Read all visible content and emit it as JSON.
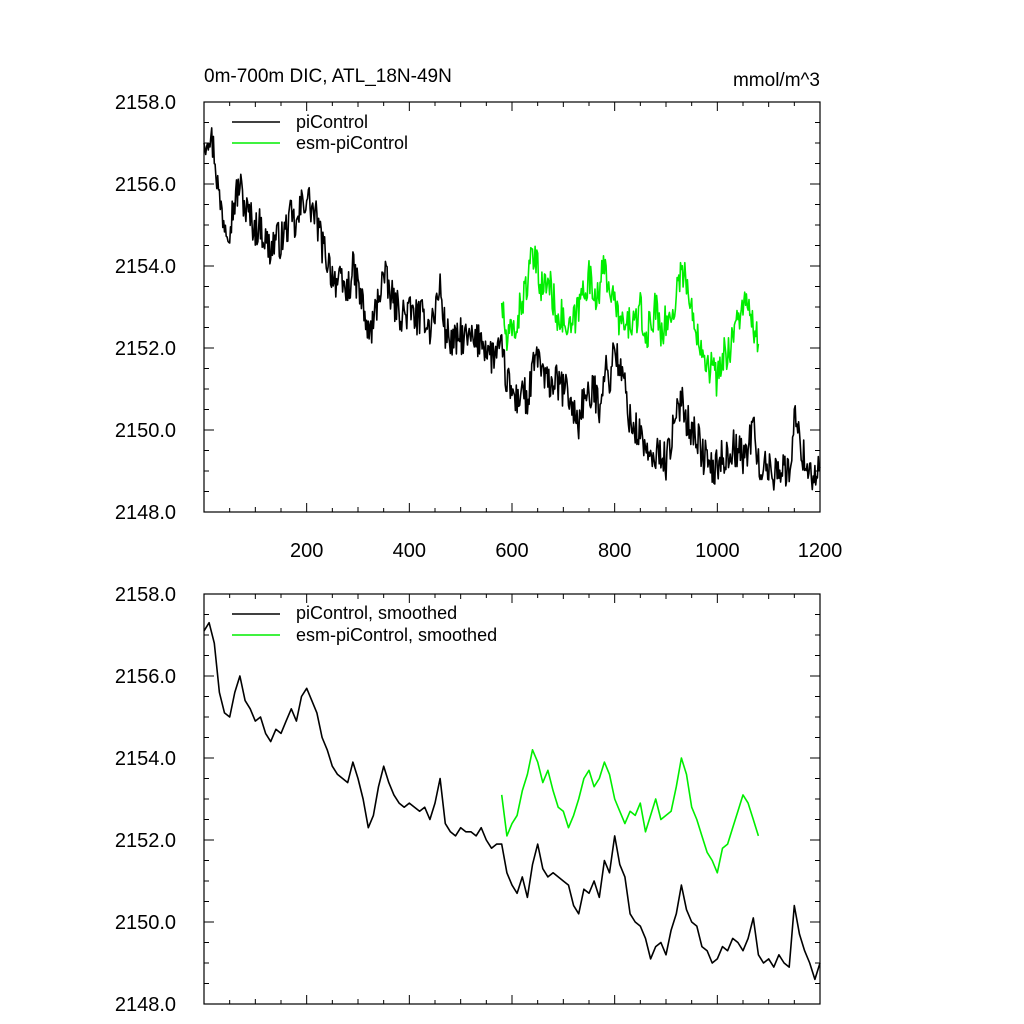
{
  "chart_data": [
    {
      "type": "line",
      "title": "0m-700m DIC, ATL_18N-49N",
      "units": "mmol/m^3",
      "xlim": [
        0,
        1200
      ],
      "ylim": [
        2148.0,
        2158.0
      ],
      "x_ticks": [
        200,
        400,
        600,
        800,
        1000,
        1200
      ],
      "y_ticks": [
        "2148.0",
        "2150.0",
        "2152.0",
        "2154.0",
        "2156.0",
        "2158.0"
      ],
      "grid": false,
      "legend_placement": "top-left",
      "series": [
        {
          "name": "piControl",
          "color": "#000000",
          "x": [
            0,
            10,
            20,
            30,
            40,
            50,
            60,
            70,
            80,
            90,
            100,
            110,
            120,
            130,
            140,
            150,
            160,
            170,
            180,
            190,
            200,
            210,
            220,
            230,
            240,
            250,
            260,
            270,
            280,
            290,
            300,
            310,
            320,
            330,
            340,
            350,
            360,
            370,
            380,
            390,
            400,
            410,
            420,
            430,
            440,
            450,
            460,
            470,
            480,
            490,
            500,
            510,
            520,
            530,
            540,
            550,
            560,
            570,
            580,
            590,
            600,
            610,
            620,
            630,
            640,
            650,
            660,
            670,
            680,
            690,
            700,
            710,
            720,
            730,
            740,
            750,
            760,
            770,
            780,
            790,
            800,
            810,
            820,
            830,
            840,
            850,
            860,
            870,
            880,
            890,
            900,
            910,
            920,
            930,
            940,
            950,
            960,
            970,
            980,
            990,
            1000,
            1010,
            1020,
            1030,
            1040,
            1050,
            1060,
            1070,
            1080,
            1090,
            1100,
            1110,
            1120,
            1130,
            1140,
            1150,
            1160,
            1170,
            1180,
            1190,
            1200
          ],
          "values": [
            2157.0,
            2157.3,
            2156.8,
            2155.6,
            2155.1,
            2155.0,
            2155.6,
            2156.0,
            2155.4,
            2155.2,
            2154.9,
            2155.0,
            2154.6,
            2154.4,
            2154.7,
            2154.6,
            2154.9,
            2155.2,
            2154.9,
            2155.5,
            2155.7,
            2155.4,
            2155.1,
            2154.5,
            2154.2,
            2153.8,
            2153.6,
            2153.5,
            2153.4,
            2153.9,
            2153.5,
            2153.0,
            2152.3,
            2152.6,
            2153.3,
            2153.8,
            2153.4,
            2153.1,
            2152.9,
            2152.8,
            2152.9,
            2152.8,
            2152.7,
            2152.8,
            2152.5,
            2152.9,
            2153.5,
            2152.4,
            2152.2,
            2152.1,
            2152.3,
            2152.2,
            2152.2,
            2152.1,
            2152.3,
            2152.0,
            2151.8,
            2151.9,
            2151.9,
            2151.2,
            2150.9,
            2150.7,
            2151.1,
            2150.6,
            2151.4,
            2151.9,
            2151.3,
            2151.1,
            2151.2,
            2151.1,
            2151.0,
            2150.9,
            2150.4,
            2150.2,
            2150.8,
            2150.7,
            2151.0,
            2150.6,
            2151.5,
            2151.2,
            2152.1,
            2151.4,
            2151.1,
            2150.2,
            2150.0,
            2149.9,
            2149.6,
            2149.1,
            2149.4,
            2149.5,
            2149.2,
            2149.8,
            2150.2,
            2150.9,
            2150.3,
            2150.0,
            2149.9,
            2149.4,
            2149.3,
            2149.0,
            2149.1,
            2149.4,
            2149.3,
            2149.6,
            2149.5,
            2149.3,
            2149.6,
            2150.1,
            2149.2,
            2149.0,
            2149.1,
            2148.9,
            2149.2,
            2149.0,
            2148.9,
            2150.4,
            2149.7,
            2149.3,
            2149.0,
            2148.9,
            2149.1
          ]
        },
        {
          "name": "esm-piControl",
          "color": "#00ee00",
          "x": [
            580,
            590,
            600,
            610,
            620,
            630,
            640,
            650,
            660,
            670,
            680,
            690,
            700,
            710,
            720,
            730,
            740,
            750,
            760,
            770,
            780,
            790,
            800,
            810,
            820,
            830,
            840,
            850,
            860,
            870,
            880,
            890,
            900,
            910,
            920,
            930,
            940,
            950,
            960,
            970,
            980,
            990,
            1000,
            1010,
            1020,
            1030,
            1040,
            1050,
            1060,
            1070,
            1080
          ],
          "values": [
            2153.1,
            2152.1,
            2152.4,
            2152.6,
            2153.2,
            2153.6,
            2154.2,
            2153.9,
            2153.4,
            2153.7,
            2153.2,
            2152.8,
            2152.7,
            2152.3,
            2152.6,
            2153.0,
            2153.5,
            2153.7,
            2153.3,
            2153.5,
            2153.9,
            2153.6,
            2153.0,
            2152.7,
            2152.4,
            2152.7,
            2152.6,
            2152.9,
            2152.2,
            2152.6,
            2153.0,
            2152.5,
            2152.6,
            2152.7,
            2153.3,
            2154.0,
            2153.6,
            2152.8,
            2152.5,
            2152.1,
            2151.7,
            2151.5,
            2151.2,
            2151.8,
            2151.9,
            2152.3,
            2152.7,
            2153.1,
            2152.9,
            2152.5,
            2152.1
          ]
        }
      ]
    },
    {
      "type": "line",
      "title": "",
      "xlim": [
        0,
        1200
      ],
      "ylim": [
        2148.0,
        2158.0
      ],
      "y_ticks": [
        "2148.0",
        "2150.0",
        "2152.0",
        "2154.0",
        "2156.0",
        "2158.0"
      ],
      "grid": false,
      "legend_placement": "top-left",
      "series": [
        {
          "name": "piControl, smoothed",
          "color": "#000000",
          "x": [
            0,
            10,
            20,
            30,
            40,
            50,
            60,
            70,
            80,
            90,
            100,
            110,
            120,
            130,
            140,
            150,
            160,
            170,
            180,
            190,
            200,
            210,
            220,
            230,
            240,
            250,
            260,
            270,
            280,
            290,
            300,
            310,
            320,
            330,
            340,
            350,
            360,
            370,
            380,
            390,
            400,
            410,
            420,
            430,
            440,
            450,
            460,
            470,
            480,
            490,
            500,
            510,
            520,
            530,
            540,
            550,
            560,
            570,
            580,
            590,
            600,
            610,
            620,
            630,
            640,
            650,
            660,
            670,
            680,
            690,
            700,
            710,
            720,
            730,
            740,
            750,
            760,
            770,
            780,
            790,
            800,
            810,
            820,
            830,
            840,
            850,
            860,
            870,
            880,
            890,
            900,
            910,
            920,
            930,
            940,
            950,
            960,
            970,
            980,
            990,
            1000,
            1010,
            1020,
            1030,
            1040,
            1050,
            1060,
            1070,
            1080,
            1090,
            1100,
            1110,
            1120,
            1130,
            1140,
            1150,
            1160,
            1170,
            1180,
            1190,
            1200
          ],
          "values": [
            2157.1,
            2157.3,
            2156.8,
            2155.6,
            2155.1,
            2155.0,
            2155.6,
            2156.0,
            2155.4,
            2155.2,
            2154.9,
            2155.0,
            2154.6,
            2154.4,
            2154.7,
            2154.6,
            2154.9,
            2155.2,
            2154.9,
            2155.5,
            2155.7,
            2155.4,
            2155.1,
            2154.5,
            2154.2,
            2153.8,
            2153.6,
            2153.5,
            2153.4,
            2153.9,
            2153.5,
            2153.0,
            2152.3,
            2152.6,
            2153.3,
            2153.8,
            2153.4,
            2153.1,
            2152.9,
            2152.8,
            2152.9,
            2152.8,
            2152.7,
            2152.8,
            2152.5,
            2152.9,
            2153.5,
            2152.4,
            2152.2,
            2152.1,
            2152.3,
            2152.2,
            2152.2,
            2152.1,
            2152.3,
            2152.0,
            2151.8,
            2151.9,
            2151.9,
            2151.2,
            2150.9,
            2150.7,
            2151.1,
            2150.6,
            2151.4,
            2151.9,
            2151.3,
            2151.1,
            2151.2,
            2151.1,
            2151.0,
            2150.9,
            2150.4,
            2150.2,
            2150.8,
            2150.7,
            2151.0,
            2150.6,
            2151.5,
            2151.2,
            2152.1,
            2151.4,
            2151.1,
            2150.2,
            2150.0,
            2149.9,
            2149.6,
            2149.1,
            2149.4,
            2149.5,
            2149.2,
            2149.8,
            2150.2,
            2150.9,
            2150.3,
            2150.0,
            2149.9,
            2149.4,
            2149.3,
            2149.0,
            2149.1,
            2149.4,
            2149.3,
            2149.6,
            2149.5,
            2149.3,
            2149.6,
            2150.1,
            2149.2,
            2149.0,
            2149.1,
            2148.9,
            2149.2,
            2149.0,
            2148.9,
            2150.4,
            2149.7,
            2149.3,
            2149.0,
            2148.6,
            2149.0
          ]
        },
        {
          "name": "esm-piControl, smoothed",
          "color": "#00ee00",
          "x": [
            580,
            590,
            600,
            610,
            620,
            630,
            640,
            650,
            660,
            670,
            680,
            690,
            700,
            710,
            720,
            730,
            740,
            750,
            760,
            770,
            780,
            790,
            800,
            810,
            820,
            830,
            840,
            850,
            860,
            870,
            880,
            890,
            900,
            910,
            920,
            930,
            940,
            950,
            960,
            970,
            980,
            990,
            1000,
            1010,
            1020,
            1030,
            1040,
            1050,
            1060,
            1070,
            1080
          ],
          "values": [
            2153.1,
            2152.1,
            2152.4,
            2152.6,
            2153.2,
            2153.6,
            2154.2,
            2153.9,
            2153.4,
            2153.7,
            2153.2,
            2152.8,
            2152.7,
            2152.3,
            2152.6,
            2153.0,
            2153.5,
            2153.7,
            2153.3,
            2153.5,
            2153.9,
            2153.6,
            2153.0,
            2152.7,
            2152.4,
            2152.7,
            2152.6,
            2152.9,
            2152.2,
            2152.6,
            2153.0,
            2152.5,
            2152.6,
            2152.7,
            2153.3,
            2154.0,
            2153.6,
            2152.8,
            2152.5,
            2152.1,
            2151.7,
            2151.5,
            2151.2,
            2151.8,
            2151.9,
            2152.3,
            2152.7,
            2153.1,
            2152.9,
            2152.5,
            2152.1
          ]
        }
      ]
    }
  ]
}
